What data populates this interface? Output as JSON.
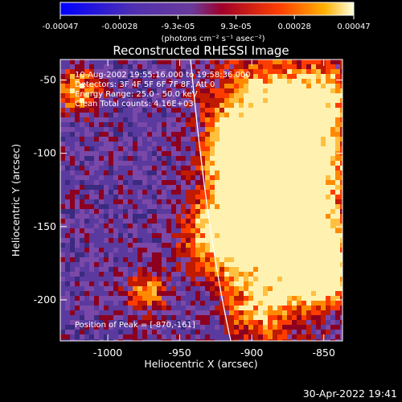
{
  "chart_data": {
    "type": "heatmap",
    "title": "Reconstructed RHESSI Image",
    "xlabel": "Heliocentric X (arcsec)",
    "ylabel": "Heliocentric Y (arcsec)",
    "xlim": [
      -1033,
      -837
    ],
    "ylim": [
      -228,
      -36
    ],
    "x_ticks": [
      -1000,
      -950,
      -900,
      -850
    ],
    "x_tick_labels": [
      "-1000",
      "-950",
      "-900",
      "-850"
    ],
    "y_ticks": [
      -50,
      -100,
      -150,
      -200
    ],
    "y_tick_labels": [
      "-50",
      "-100",
      "-150",
      "-200"
    ],
    "peak": [
      -870,
      -161
    ],
    "colorbar": {
      "min": -0.00047,
      "max": 0.00047,
      "ticks": [
        -0.00047,
        -0.00028,
        -9.3e-05,
        9.3e-05,
        0.00028,
        0.00047
      ],
      "tick_labels": [
        "-0.00047",
        "-0.00028",
        "-9.3e-05",
        "9.3e-05",
        "0.00028",
        "0.00047"
      ],
      "units": "(photons cm⁻² s⁻¹ asec⁻²)"
    },
    "annotations": [
      "10-Aug-2002 19:55:16.000 to 19:58:36.000",
      "Detectors: 3F 4F 5F 6F 7F 8F, Att 0",
      "Energy Range: 25.0 - 50.0 keV",
      "Clean    Total counts: 4.16E+03"
    ],
    "peak_text": "Position of Peak = [-870,-161]",
    "footer_timestamp": "30-Apr-2022 19:41"
  }
}
